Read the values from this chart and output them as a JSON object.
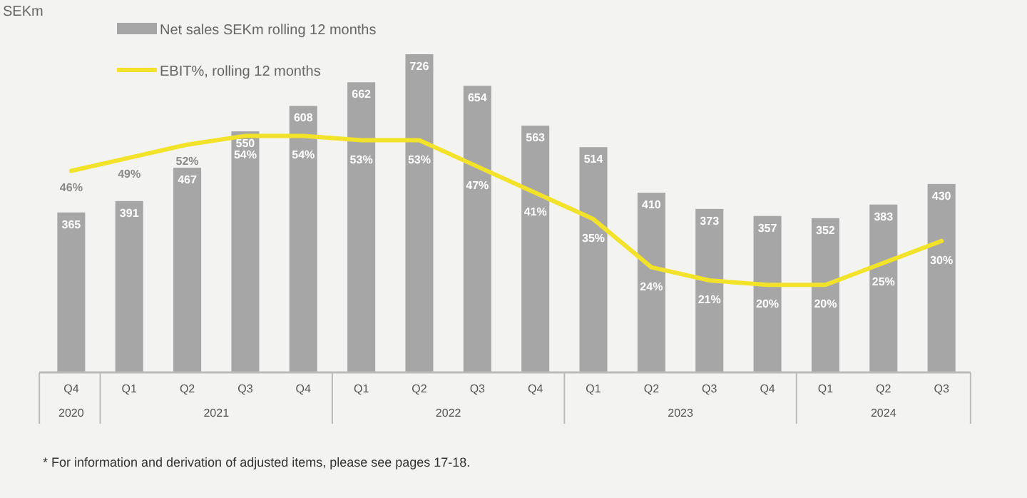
{
  "chart_data": {
    "type": "bar",
    "ylabel": "SEKm",
    "categories": [
      "Q4",
      "Q1",
      "Q2",
      "Q3",
      "Q4",
      "Q1",
      "Q2",
      "Q3",
      "Q4",
      "Q1",
      "Q2",
      "Q3",
      "Q4",
      "Q1",
      "Q2",
      "Q3"
    ],
    "series": [
      {
        "name": "Net sales SEKm rolling 12 months",
        "color": "#a6a6a6",
        "values": [
          365,
          391,
          467,
          550,
          608,
          662,
          726,
          654,
          563,
          514,
          410,
          373,
          357,
          352,
          383,
          430
        ]
      },
      {
        "name": "EBIT%, rolling 12 months",
        "type": "line",
        "axis": "y2",
        "color": "#f2e32a",
        "values": [
          46,
          49,
          52,
          54,
          54,
          53,
          53,
          47,
          41,
          35,
          24,
          21,
          20,
          20,
          25,
          30
        ],
        "value_labels": [
          "46%",
          "49%",
          "52%",
          "54%",
          "54%",
          "53%",
          "53%",
          "47%",
          "41%",
          "35%",
          "24%",
          "21%",
          "20%",
          "20%",
          "25%",
          "30%"
        ]
      }
    ],
    "data_labels": true,
    "legend": "top left",
    "marker": "none",
    "line_style": "solid",
    "annotations": [
      "2020",
      "2021",
      "2022",
      "2023",
      "2024",
      "* For information and derivation of adjusted items, please see pages 17-18."
    ]
  }
}
